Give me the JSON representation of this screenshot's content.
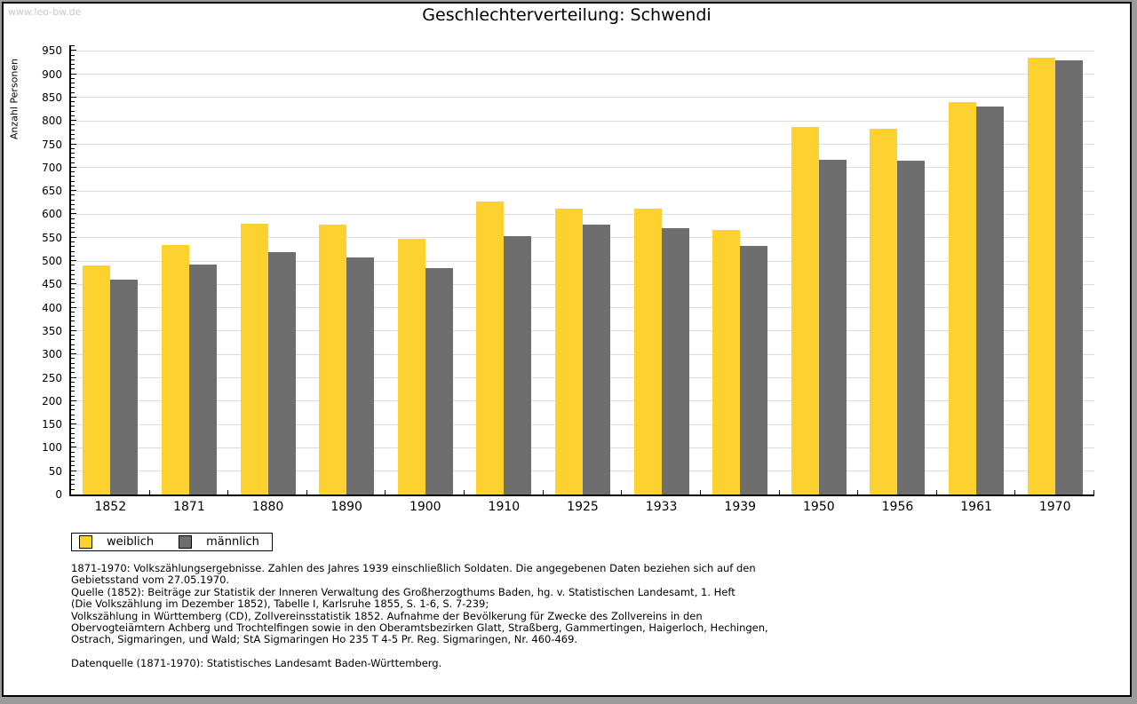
{
  "watermark": "www.leo-bw.de",
  "title": "Geschlechterverteilung: Schwendi",
  "chart_data": {
    "type": "bar",
    "title": "Geschlechterverteilung: Schwendi",
    "xlabel": "",
    "ylabel": "Anzahl Personen",
    "ylim": [
      0,
      950
    ],
    "ytick_step": 50,
    "y_minor_step": 10,
    "y_view_max": 962,
    "grid": true,
    "legend_position": "bottom-left",
    "categories": [
      "1852",
      "1871",
      "1880",
      "1890",
      "1900",
      "1910",
      "1925",
      "1933",
      "1939",
      "1950",
      "1956",
      "1961",
      "1970"
    ],
    "series": [
      {
        "name": "weiblich",
        "color": "#FDD230",
        "values": [
          490,
          534,
          580,
          578,
          547,
          628,
          613,
          613,
          566,
          788,
          783,
          840,
          935
        ]
      },
      {
        "name": "männlich",
        "color": "#6E6E6E",
        "values": [
          461,
          492,
          520,
          507,
          484,
          554,
          578,
          570,
          532,
          716,
          714,
          831,
          929
        ]
      }
    ]
  },
  "colors": {
    "axis": "#000000",
    "grid": "#dcdcdc",
    "watermark": "#c9c9c9"
  },
  "footnotes": {
    "lines": [
      "1871-1970: Volkszählungsergebnisse. Zahlen des Jahres 1939 einschließlich Soldaten. Die angegebenen Daten beziehen sich auf den",
      "Gebietsstand vom 27.05.1970.",
      "Quelle (1852): Beiträge zur Statistik der Inneren Verwaltung des Großherzogthums Baden, hg. v. Statistischen Landesamt, 1. Heft",
      "(Die Volkszählung im Dezember 1852), Tabelle I, Karlsruhe 1855, S. 1-6, S. 7-239;",
      "Volkszählung in Württemberg (CD), Zollvereinsstatistik 1852. Aufnahme der Bevölkerung für Zwecke des Zollvereins in den",
      "Obervogteiämtern Achberg und Trochtelfingen sowie in den Oberamtsbezirken Glatt, Straßberg, Gammertingen, Haigerloch, Hechingen,",
      "Ostrach, Sigmaringen, und Wald; StA Sigmaringen Ho 235 T 4-5 Pr. Reg. Sigmaringen, Nr. 460-469.",
      "",
      "Datenquelle (1871-1970): Statistisches Landesamt Baden-Württemberg."
    ]
  }
}
